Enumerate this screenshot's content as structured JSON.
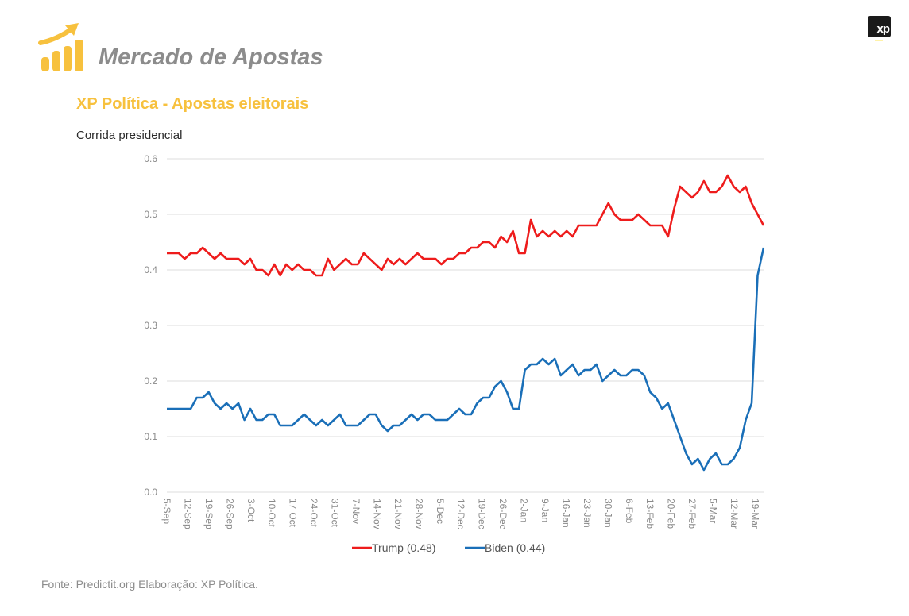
{
  "header": {
    "app_title": "Mercado de Apostas",
    "logo_icon": "rising-bar-chart-icon",
    "brand_badge": "xp",
    "accent_color": "#f7c13e"
  },
  "subtitle": "XP Política - Apostas eleitorais",
  "section_label": "Corrida presidencial",
  "footer": "Fonte: Predictit.org Elaboração: XP Política.",
  "chart_data": {
    "type": "line",
    "title": "Corrida presidencial",
    "xlabel": "",
    "ylabel": "",
    "ylim": [
      0,
      0.6
    ],
    "yticks": [
      "0.0",
      "0.1",
      "0.2",
      "0.3",
      "0.4",
      "0.5",
      "0.6"
    ],
    "ytick_values": [
      0,
      0.1,
      0.2,
      0.3,
      0.4,
      0.5,
      0.6
    ],
    "xticks": [
      "5-Sep",
      "12-Sep",
      "19-Sep",
      "26-Sep",
      "3-Oct",
      "10-Oct",
      "17-Oct",
      "24-Oct",
      "31-Oct",
      "7-Nov",
      "14-Nov",
      "21-Nov",
      "28-Nov",
      "5-Dec",
      "12-Dec",
      "19-Dec",
      "26-Dec",
      "2-Jan",
      "9-Jan",
      "16-Jan",
      "23-Jan",
      "30-Jan",
      "6-Feb",
      "13-Feb",
      "20-Feb",
      "27-Feb",
      "5-Mar",
      "12-Mar",
      "19-Mar"
    ],
    "x_unit": "days since 5-Sep",
    "x_range": [
      0,
      200
    ],
    "grid": true,
    "legend_position": "bottom-center",
    "series": [
      {
        "name": "Trump (0.48)",
        "color": "#ee1c1c",
        "x": [
          0,
          2,
          4,
          6,
          8,
          10,
          12,
          14,
          16,
          18,
          20,
          22,
          24,
          26,
          28,
          30,
          32,
          34,
          36,
          38,
          40,
          42,
          44,
          46,
          48,
          50,
          52,
          54,
          56,
          58,
          60,
          62,
          64,
          66,
          68,
          70,
          72,
          74,
          76,
          78,
          80,
          82,
          84,
          86,
          88,
          90,
          92,
          94,
          96,
          98,
          100,
          102,
          104,
          106,
          108,
          110,
          112,
          114,
          116,
          118,
          120,
          122,
          124,
          126,
          128,
          130,
          132,
          134,
          136,
          138,
          140,
          142,
          144,
          146,
          148,
          150,
          152,
          154,
          156,
          158,
          160,
          162,
          164,
          166,
          168,
          170,
          172,
          174,
          176,
          178,
          180,
          182,
          184,
          186,
          188,
          190,
          192,
          194,
          196,
          198,
          200
        ],
        "values": [
          0.43,
          0.43,
          0.43,
          0.42,
          0.43,
          0.43,
          0.44,
          0.43,
          0.42,
          0.43,
          0.42,
          0.42,
          0.42,
          0.41,
          0.42,
          0.4,
          0.4,
          0.39,
          0.41,
          0.39,
          0.41,
          0.4,
          0.41,
          0.4,
          0.4,
          0.39,
          0.39,
          0.42,
          0.4,
          0.41,
          0.42,
          0.41,
          0.41,
          0.43,
          0.42,
          0.41,
          0.4,
          0.42,
          0.41,
          0.42,
          0.41,
          0.42,
          0.43,
          0.42,
          0.42,
          0.42,
          0.41,
          0.42,
          0.42,
          0.43,
          0.43,
          0.44,
          0.44,
          0.45,
          0.45,
          0.44,
          0.46,
          0.45,
          0.47,
          0.43,
          0.43,
          0.49,
          0.46,
          0.47,
          0.46,
          0.47,
          0.46,
          0.47,
          0.46,
          0.48,
          0.48,
          0.48,
          0.48,
          0.5,
          0.52,
          0.5,
          0.49,
          0.49,
          0.49,
          0.5,
          0.49,
          0.48,
          0.48,
          0.48,
          0.46,
          0.51,
          0.55,
          0.54,
          0.53,
          0.54,
          0.56,
          0.54,
          0.54,
          0.55,
          0.57,
          0.55,
          0.54,
          0.55,
          0.52,
          0.5,
          0.48
        ]
      },
      {
        "name": "Biden (0.44)",
        "color": "#1a6fb8",
        "x": [
          0,
          2,
          4,
          6,
          8,
          10,
          12,
          14,
          16,
          18,
          20,
          22,
          24,
          26,
          28,
          30,
          32,
          34,
          36,
          38,
          40,
          42,
          44,
          46,
          48,
          50,
          52,
          54,
          56,
          58,
          60,
          62,
          64,
          66,
          68,
          70,
          72,
          74,
          76,
          78,
          80,
          82,
          84,
          86,
          88,
          90,
          92,
          94,
          96,
          98,
          100,
          102,
          104,
          106,
          108,
          110,
          112,
          114,
          116,
          118,
          120,
          122,
          124,
          126,
          128,
          130,
          132,
          134,
          136,
          138,
          140,
          142,
          144,
          146,
          148,
          150,
          152,
          154,
          156,
          158,
          160,
          162,
          164,
          166,
          168,
          170,
          172,
          174,
          176,
          178,
          180,
          182,
          184,
          186,
          188,
          190,
          192,
          194,
          196,
          198,
          200
        ],
        "values": [
          0.15,
          0.15,
          0.15,
          0.15,
          0.15,
          0.17,
          0.17,
          0.18,
          0.16,
          0.15,
          0.16,
          0.15,
          0.16,
          0.13,
          0.15,
          0.13,
          0.13,
          0.14,
          0.14,
          0.12,
          0.12,
          0.12,
          0.13,
          0.14,
          0.13,
          0.12,
          0.13,
          0.12,
          0.13,
          0.14,
          0.12,
          0.12,
          0.12,
          0.13,
          0.14,
          0.14,
          0.12,
          0.11,
          0.12,
          0.12,
          0.13,
          0.14,
          0.13,
          0.14,
          0.14,
          0.13,
          0.13,
          0.13,
          0.14,
          0.15,
          0.14,
          0.14,
          0.16,
          0.17,
          0.17,
          0.19,
          0.2,
          0.18,
          0.15,
          0.15,
          0.22,
          0.23,
          0.23,
          0.24,
          0.23,
          0.24,
          0.21,
          0.22,
          0.23,
          0.21,
          0.22,
          0.22,
          0.23,
          0.2,
          0.21,
          0.22,
          0.21,
          0.21,
          0.22,
          0.22,
          0.21,
          0.18,
          0.17,
          0.15,
          0.16,
          0.13,
          0.1,
          0.07,
          0.05,
          0.06,
          0.04,
          0.06,
          0.07,
          0.05,
          0.05,
          0.06,
          0.08,
          0.13,
          0.16,
          0.39,
          0.44
        ]
      }
    ]
  }
}
